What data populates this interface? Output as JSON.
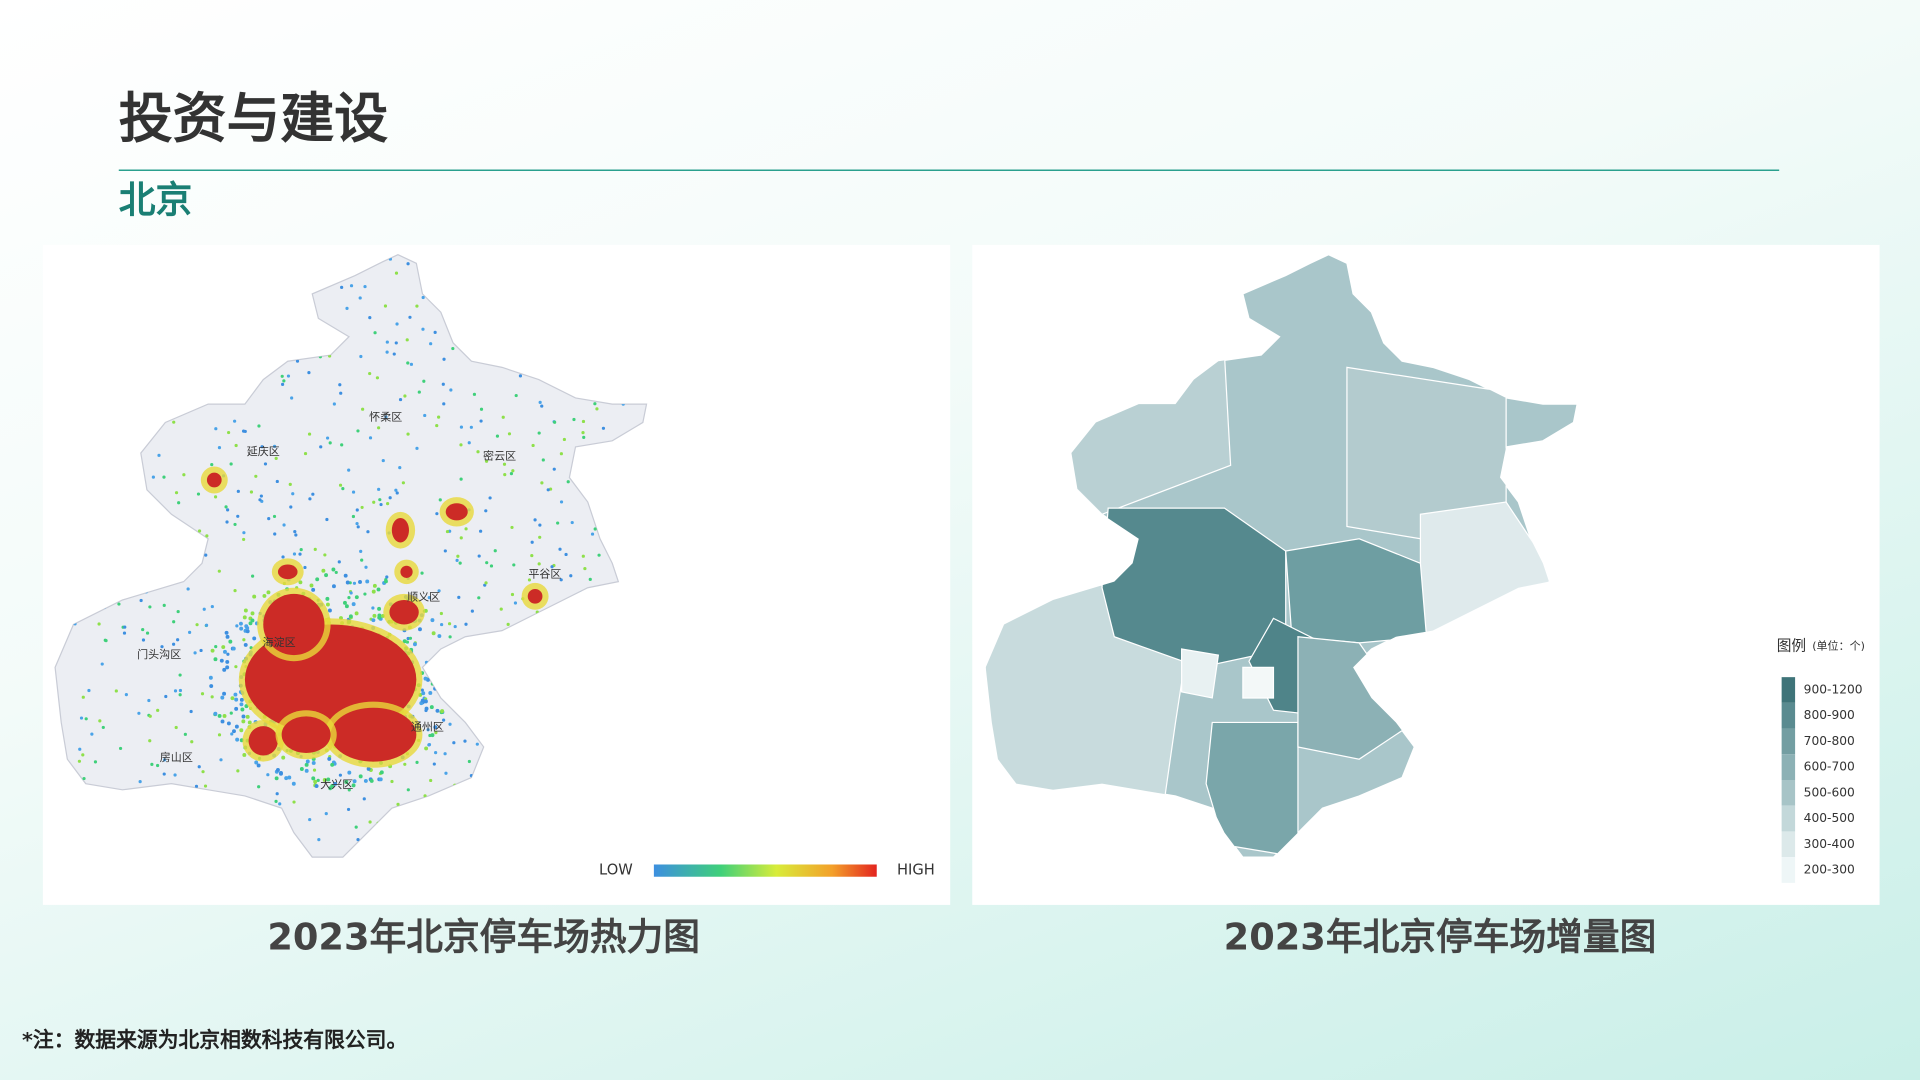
{
  "header": {
    "title": "投资与建设",
    "subtitle": "北京"
  },
  "left_map": {
    "caption": "2023年北京停车场热力图",
    "scale_low": "LOW",
    "scale_high": "HIGH",
    "district_labels": [
      "怀柔区",
      "延庆区",
      "密云区",
      "平谷区",
      "顺义区",
      "门头沟区",
      "海淀区",
      "房山区",
      "通州区",
      "大兴区"
    ]
  },
  "right_map": {
    "caption": "2023年北京停车场增量图",
    "legend_title": "图例",
    "legend_unit": "(单位：个)",
    "legend_items": [
      {
        "label": "900-1200",
        "color": "#3f7479"
      },
      {
        "label": "800-900",
        "color": "#5a8b90"
      },
      {
        "label": "700-800",
        "color": "#739ea2"
      },
      {
        "label": "600-700",
        "color": "#8cb1b5"
      },
      {
        "label": "500-600",
        "color": "#a7c4c7"
      },
      {
        "label": "400-500",
        "color": "#c3d8da"
      },
      {
        "label": "300-400",
        "color": "#dce9ea"
      },
      {
        "label": "200-300",
        "color": "#eef6f7"
      }
    ]
  },
  "footer": {
    "note": "*注：数据来源为北京相数科技有限公司。"
  }
}
